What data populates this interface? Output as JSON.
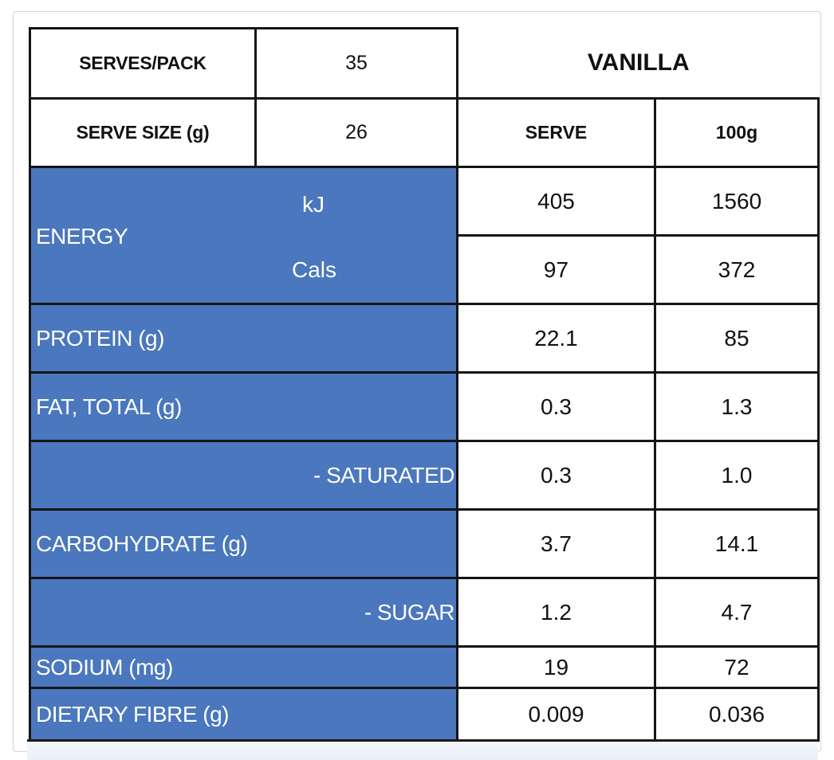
{
  "header": {
    "serves_pack_label": "SERVES/PACK",
    "serves_pack_value": "35",
    "serve_size_label": "SERVE SIZE (g)",
    "serve_size_value": "26",
    "flavour": "VANILLA",
    "col_serve": "SERVE",
    "col_100g": "100g"
  },
  "energy": {
    "label": "ENERGY",
    "kj_label": "kJ",
    "cals_label": "Cals",
    "kj_serve": "405",
    "kj_100g": "1560",
    "cals_serve": "97",
    "cals_100g": "372"
  },
  "rows": [
    {
      "label": "PROTEIN (g)",
      "serve": "22.1",
      "per100": "85"
    },
    {
      "label": "FAT, TOTAL (g)",
      "serve": "0.3",
      "per100": "1.3"
    },
    {
      "label": "- SATURATED",
      "serve": "0.3",
      "per100": "1.0"
    },
    {
      "label": "CARBOHYDRATE (g)",
      "serve": "3.7",
      "per100": "14.1"
    },
    {
      "label": "- SUGAR",
      "serve": "1.2",
      "per100": "4.7"
    },
    {
      "label": "SODIUM (mg)",
      "serve": "19",
      "per100": "72"
    },
    {
      "label": "DIETARY FIBRE (g)",
      "serve": "0.009",
      "per100": "0.036"
    }
  ],
  "colors": {
    "label_background": "#4a77bd",
    "border": "#151515"
  }
}
